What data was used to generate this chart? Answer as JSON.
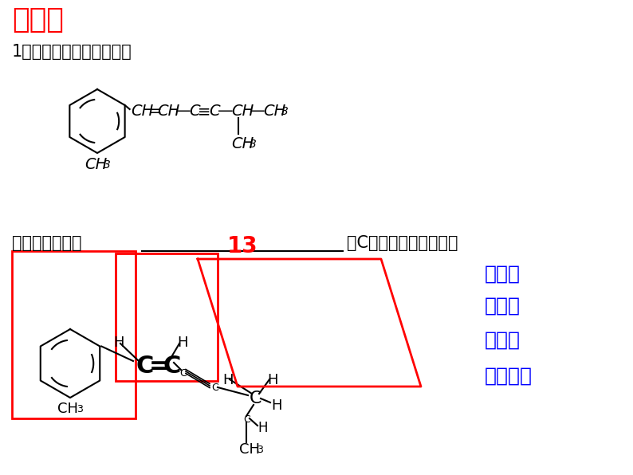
{
  "title": "练一练",
  "title_color": "#FF0000",
  "bg_color": "#FFFFFF",
  "question_text": "1、某有机分子结构如下：",
  "answer_text_prefix": "该分子中最多有",
  "answer_number": "13",
  "answer_text_suffix": "个C原子共处同一平面。",
  "right_labels": [
    "烯平面",
    "苯平面",
    "炔直线",
    "烷烃平面"
  ],
  "right_labels_color": "#0000FF",
  "figsize": [
    7.94,
    5.96
  ],
  "dpi": 100
}
